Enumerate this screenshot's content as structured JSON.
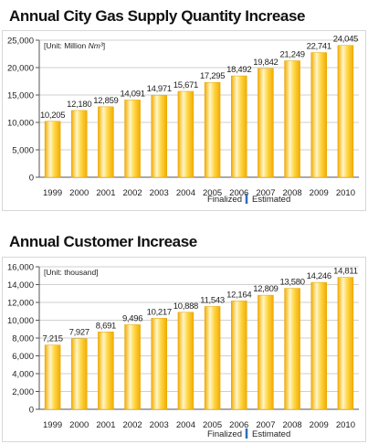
{
  "colors": {
    "bar_light": "#fff6c8",
    "bar_mid": "#ffd84a",
    "bar_dark": "#f2ac00",
    "grid": "#cfcfcf",
    "axis": "#555555",
    "legend_divider": "#2f6db5"
  },
  "legend": {
    "finalized": "Finalized",
    "estimated": "Estimated"
  },
  "chart_data": [
    {
      "type": "bar",
      "title": "Annual City Gas Supply Quantity Increase",
      "unit_label_prefix": "[Unit: Million ",
      "unit_label_unit": "Nm³",
      "unit_label_suffix": "]",
      "categories": [
        "1999",
        "2000",
        "2001",
        "2002",
        "2003",
        "2004",
        "2005",
        "2006",
        "2007",
        "2008",
        "2009",
        "2010"
      ],
      "values": [
        10205,
        12180,
        12859,
        14091,
        14971,
        15671,
        17295,
        18492,
        19842,
        21249,
        22741,
        24045
      ],
      "value_labels": [
        "10,205",
        "12,180",
        "12,859",
        "14,091",
        "14,971",
        "15,671",
        "17,295",
        "18,492",
        "19,842",
        "21,249",
        "22,741",
        "24,045"
      ],
      "ylim": [
        0,
        25000
      ],
      "yticks": [
        0,
        5000,
        10000,
        15000,
        20000,
        25000
      ],
      "ytick_labels": [
        "0",
        "5,000",
        "10,000",
        "15,000",
        "20,000",
        "25,000"
      ],
      "grid": true,
      "legend_position": "bottom-right"
    },
    {
      "type": "bar",
      "title": "Annual Customer Increase",
      "unit_label_prefix": "[Unit: thousand]",
      "unit_label_unit": "",
      "unit_label_suffix": "",
      "categories": [
        "1999",
        "2000",
        "2001",
        "2002",
        "2003",
        "2004",
        "2005",
        "2006",
        "2007",
        "2008",
        "2009",
        "2010"
      ],
      "values": [
        7215,
        7927,
        8691,
        9496,
        10217,
        10888,
        11543,
        12164,
        12809,
        13580,
        14246,
        14811
      ],
      "value_labels": [
        "7,215",
        "7,927",
        "8,691",
        "9,496",
        "10,217",
        "10,888",
        "11,543",
        "12,164",
        "12,809",
        "13,580",
        "14,246",
        "14,811"
      ],
      "ylim": [
        0,
        16000
      ],
      "yticks": [
        0,
        2000,
        4000,
        6000,
        8000,
        10000,
        12000,
        14000,
        16000
      ],
      "ytick_labels": [
        "0",
        "2,000",
        "4,000",
        "6,000",
        "8,000",
        "10,000",
        "12,000",
        "14,000",
        "16,000"
      ],
      "grid": true,
      "legend_position": "bottom-right"
    }
  ]
}
